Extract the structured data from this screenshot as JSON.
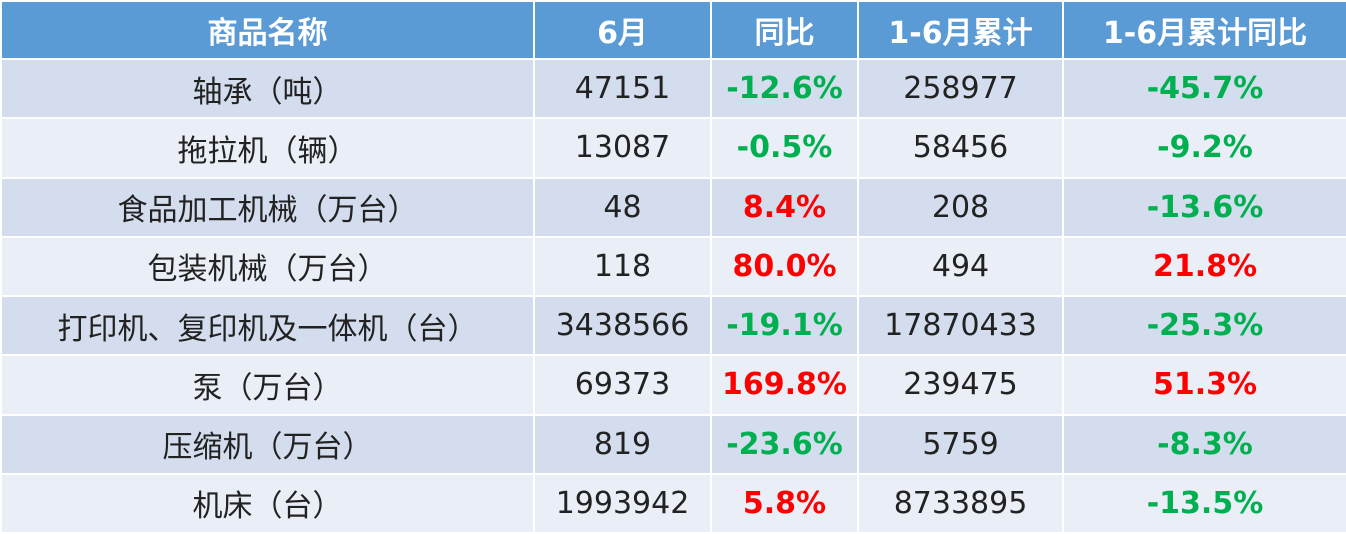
{
  "table": {
    "header": [
      "商品名称",
      "6月",
      "同比",
      "1-6月累计",
      "1-6月累计同比"
    ],
    "rows": [
      [
        "轴承（吨）",
        "47151",
        "-12.6%",
        "258977",
        "-45.7%"
      ],
      [
        "拖拉机（辆）",
        "13087",
        "-0.5%",
        "58456",
        "-9.2%"
      ],
      [
        "食品加工机械（万台）",
        "48",
        "8.4%",
        "208",
        "-13.6%"
      ],
      [
        "包装机械（万台）",
        "118",
        "80.0%",
        "494",
        "21.8%"
      ],
      [
        "打印机、复印机及一体机（台）",
        "3438566",
        "-19.1%",
        "17870433",
        "-25.3%"
      ],
      [
        "泵（万台）",
        "69373",
        "169.8%",
        "239475",
        "51.3%"
      ],
      [
        "压缩机（万台）",
        "819",
        "-23.6%",
        "5759",
        "-8.3%"
      ],
      [
        "机床（台）",
        "1993942",
        "5.8%",
        "8733895",
        "-13.5%"
      ]
    ]
  }
}
